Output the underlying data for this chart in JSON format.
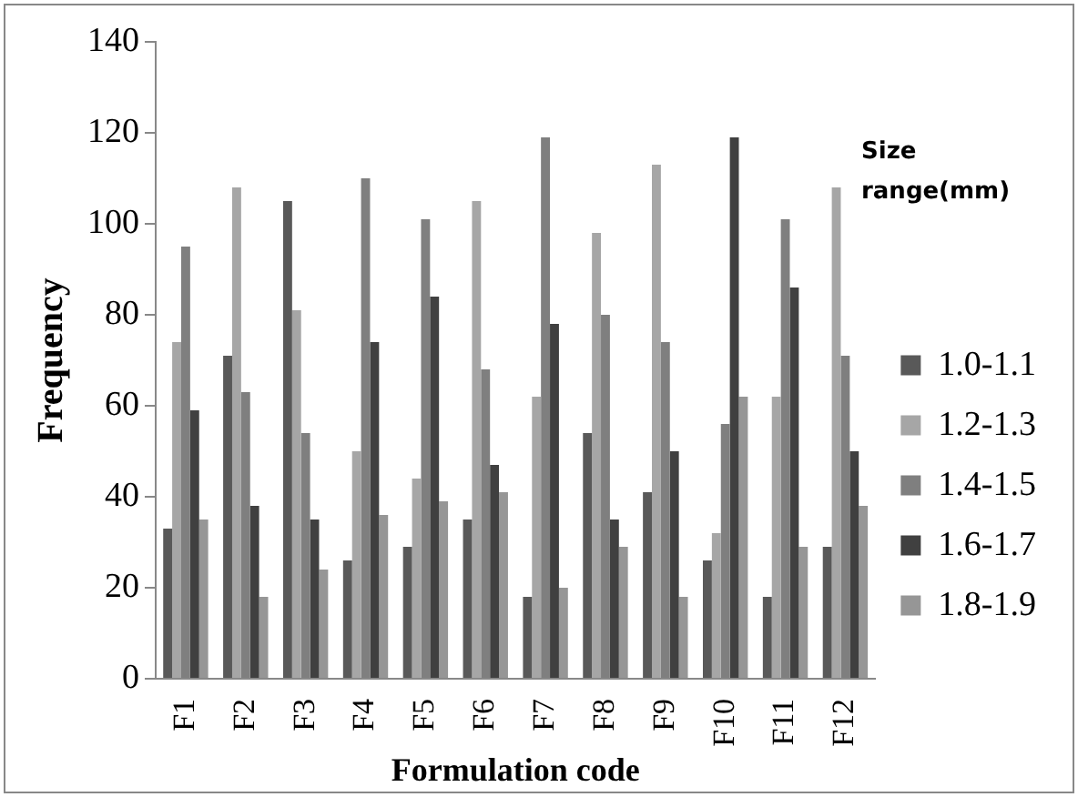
{
  "chart_data": {
    "type": "bar",
    "xlabel": "Formulation code",
    "ylabel": "Frequency",
    "legend_title": "Size range(mm)",
    "categories": [
      "F1",
      "F2",
      "F3",
      "F4",
      "F5",
      "F6",
      "F7",
      "F8",
      "F9",
      "F10",
      "F11",
      "F12"
    ],
    "series": [
      {
        "name": "1.0-1.1",
        "color": "#595959",
        "values": [
          33,
          71,
          105,
          26,
          29,
          35,
          18,
          54,
          41,
          26,
          18,
          29
        ]
      },
      {
        "name": "1.2-1.3",
        "color": "#a6a6a6",
        "values": [
          74,
          108,
          81,
          50,
          44,
          105,
          62,
          98,
          113,
          32,
          62,
          108
        ]
      },
      {
        "name": "1.4-1.5",
        "color": "#7f7f7f",
        "values": [
          95,
          63,
          54,
          110,
          101,
          68,
          119,
          80,
          74,
          56,
          101,
          71
        ]
      },
      {
        "name": "1.6-1.7",
        "color": "#404040",
        "values": [
          59,
          38,
          35,
          74,
          84,
          47,
          78,
          35,
          50,
          119,
          86,
          50
        ]
      },
      {
        "name": "1.8-1.9",
        "color": "#969696",
        "values": [
          35,
          18,
          24,
          36,
          39,
          41,
          20,
          29,
          18,
          62,
          29,
          38
        ]
      }
    ],
    "ylim": [
      0,
      140
    ],
    "yticks": [
      0,
      20,
      40,
      60,
      80,
      100,
      120,
      140
    ],
    "grid": false,
    "legend": "right"
  }
}
